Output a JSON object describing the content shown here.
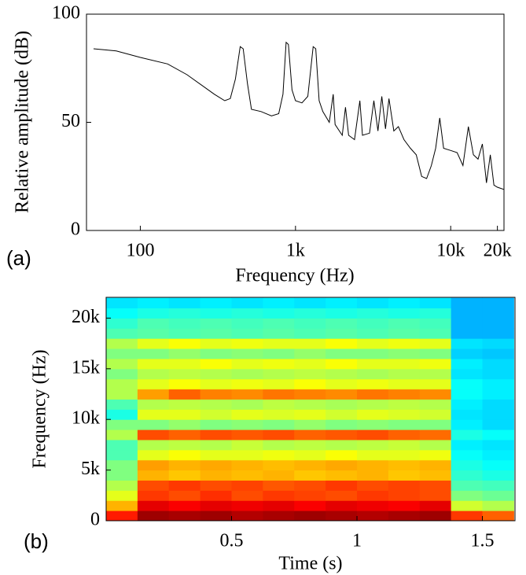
{
  "chart_data": [
    {
      "type": "line",
      "panel_label": "(a)",
      "x_label": "Frequency (Hz)",
      "y_label": "Relative amplitude (dB)",
      "x_scale": "log",
      "color": "#000000",
      "xlim": [
        45,
        22050
      ],
      "ylim": [
        0,
        100
      ],
      "xticks": [
        100,
        {
          "value": 1000,
          "label": "1k"
        },
        {
          "value": 10000,
          "label": "10k"
        },
        {
          "value": 20000,
          "label": "20k"
        }
      ],
      "yticks": [
        0,
        50,
        100
      ],
      "x": [
        50,
        70,
        100,
        150,
        200,
        300,
        350,
        380,
        410,
        440,
        460,
        490,
        520,
        600,
        700,
        780,
        830,
        870,
        900,
        950,
        1000,
        1100,
        1200,
        1300,
        1350,
        1420,
        1500,
        1650,
        1750,
        1800,
        2000,
        2100,
        2200,
        2400,
        2600,
        2700,
        3000,
        3200,
        3400,
        3600,
        3800,
        4000,
        4300,
        4600,
        5000,
        5500,
        6000,
        6500,
        7000,
        7500,
        8000,
        8500,
        9000,
        10000,
        11000,
        12000,
        13000,
        14000,
        15000,
        16000,
        17000,
        18000,
        19000,
        20000,
        22000
      ],
      "series": [
        {
          "values": [
            84,
            83,
            80,
            77,
            72,
            63,
            60,
            61,
            70,
            85,
            84,
            68,
            56,
            55,
            53,
            54,
            63,
            87,
            86,
            65,
            60,
            59,
            62,
            85,
            84,
            60,
            55,
            50,
            63,
            49,
            44,
            57,
            44,
            42,
            60,
            44,
            45,
            60,
            46,
            62,
            47,
            61,
            46,
            48,
            42,
            38,
            35,
            25,
            24,
            30,
            38,
            52,
            38,
            37,
            36,
            30,
            48,
            35,
            33,
            40,
            22,
            35,
            21,
            20,
            19
          ]
        }
      ]
    },
    {
      "type": "heatmap",
      "panel_label": "(b)",
      "x_label": "Time (s)",
      "y_label": "Frequency (Hz)",
      "colormap": "jet",
      "clim": [
        0,
        1
      ],
      "xlim": [
        0,
        1.63
      ],
      "ylim": [
        0,
        22050
      ],
      "xticks": [
        0.5,
        1,
        1.5
      ],
      "yticks": [
        0,
        {
          "value": 5000,
          "label": "5k"
        },
        {
          "value": 10000,
          "label": "10k"
        },
        {
          "value": 15000,
          "label": "15k"
        },
        {
          "value": 20000,
          "label": "20k"
        }
      ],
      "x_edges": [
        0,
        0.125,
        0.25,
        0.375,
        0.5,
        0.625,
        0.75,
        0.875,
        1,
        1.125,
        1.25,
        1.375,
        1.5,
        1.625
      ],
      "y_edges": [
        0,
        1000,
        2000,
        3000,
        4000,
        5000,
        6000,
        7000,
        8000,
        9000,
        10000,
        11000,
        12000,
        13000,
        14000,
        15000,
        16000,
        17000,
        18000,
        19000,
        20000,
        21000,
        22000
      ],
      "z": [
        [
          0.85,
          0.97,
          0.96,
          0.97,
          0.95,
          0.96,
          0.97,
          0.96,
          0.95,
          0.96,
          0.97,
          0.82,
          0.78
        ],
        [
          0.7,
          0.9,
          0.88,
          0.9,
          0.89,
          0.9,
          0.88,
          0.9,
          0.89,
          0.88,
          0.9,
          0.58,
          0.55
        ],
        [
          0.6,
          0.82,
          0.8,
          0.83,
          0.8,
          0.82,
          0.81,
          0.8,
          0.82,
          0.81,
          0.8,
          0.5,
          0.48
        ],
        [
          0.55,
          0.8,
          0.82,
          0.8,
          0.81,
          0.79,
          0.8,
          0.82,
          0.8,
          0.81,
          0.8,
          0.45,
          0.44
        ],
        [
          0.5,
          0.7,
          0.68,
          0.7,
          0.69,
          0.7,
          0.68,
          0.69,
          0.7,
          0.68,
          0.69,
          0.42,
          0.4
        ],
        [
          0.5,
          0.72,
          0.7,
          0.71,
          0.7,
          0.69,
          0.7,
          0.71,
          0.7,
          0.69,
          0.7,
          0.4,
          0.38
        ],
        [
          0.45,
          0.6,
          0.62,
          0.6,
          0.6,
          0.61,
          0.6,
          0.62,
          0.6,
          0.6,
          0.61,
          0.38,
          0.36
        ],
        [
          0.45,
          0.55,
          0.56,
          0.55,
          0.57,
          0.55,
          0.56,
          0.55,
          0.56,
          0.57,
          0.55,
          0.36,
          0.35
        ],
        [
          0.55,
          0.8,
          0.78,
          0.8,
          0.79,
          0.8,
          0.78,
          0.79,
          0.8,
          0.78,
          0.77,
          0.4,
          0.38
        ],
        [
          0.5,
          0.5,
          0.52,
          0.5,
          0.51,
          0.5,
          0.52,
          0.5,
          0.51,
          0.5,
          0.5,
          0.36,
          0.34
        ],
        [
          0.4,
          0.6,
          0.6,
          0.58,
          0.6,
          0.59,
          0.6,
          0.58,
          0.6,
          0.59,
          0.58,
          0.35,
          0.34
        ],
        [
          0.45,
          0.55,
          0.56,
          0.55,
          0.54,
          0.56,
          0.55,
          0.54,
          0.55,
          0.56,
          0.55,
          0.36,
          0.34
        ],
        [
          0.55,
          0.72,
          0.78,
          0.75,
          0.74,
          0.76,
          0.75,
          0.74,
          0.76,
          0.75,
          0.74,
          0.38,
          0.36
        ],
        [
          0.55,
          0.6,
          0.62,
          0.6,
          0.61,
          0.6,
          0.62,
          0.6,
          0.61,
          0.6,
          0.6,
          0.38,
          0.36
        ],
        [
          0.5,
          0.55,
          0.56,
          0.55,
          0.54,
          0.55,
          0.56,
          0.55,
          0.54,
          0.55,
          0.55,
          0.35,
          0.34
        ],
        [
          0.55,
          0.6,
          0.6,
          0.62,
          0.6,
          0.61,
          0.6,
          0.62,
          0.6,
          0.6,
          0.61,
          0.36,
          0.34
        ],
        [
          0.5,
          0.5,
          0.52,
          0.5,
          0.51,
          0.5,
          0.52,
          0.5,
          0.5,
          0.51,
          0.5,
          0.33,
          0.32
        ],
        [
          0.55,
          0.6,
          0.62,
          0.6,
          0.61,
          0.6,
          0.6,
          0.62,
          0.6,
          0.61,
          0.6,
          0.35,
          0.34
        ],
        [
          0.45,
          0.46,
          0.45,
          0.46,
          0.45,
          0.46,
          0.45,
          0.46,
          0.45,
          0.46,
          0.45,
          0.3,
          0.3
        ],
        [
          0.42,
          0.45,
          0.44,
          0.45,
          0.44,
          0.45,
          0.44,
          0.45,
          0.44,
          0.45,
          0.44,
          0.3,
          0.3
        ],
        [
          0.38,
          0.4,
          0.41,
          0.4,
          0.41,
          0.4,
          0.41,
          0.4,
          0.41,
          0.4,
          0.41,
          0.3,
          0.3
        ],
        [
          0.35,
          0.36,
          0.35,
          0.36,
          0.35,
          0.36,
          0.35,
          0.36,
          0.35,
          0.36,
          0.35,
          0.3,
          0.3
        ]
      ]
    }
  ]
}
